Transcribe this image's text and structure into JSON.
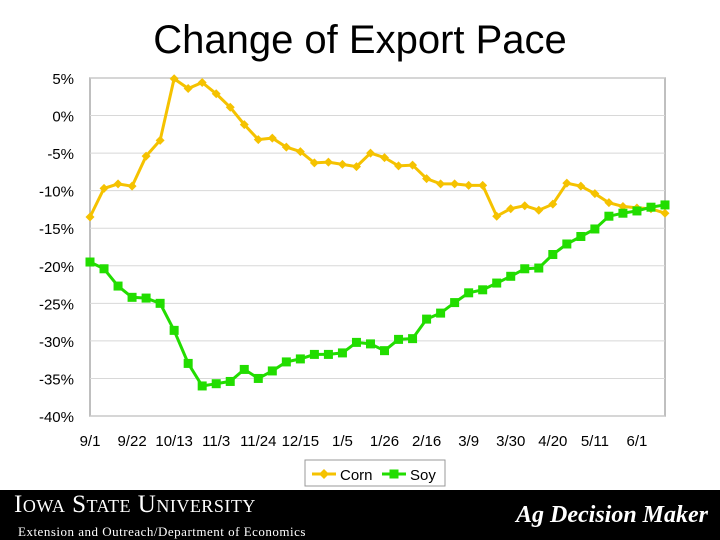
{
  "page": {
    "title": "Change of Export Pace",
    "footer": {
      "university": "Iowa State University",
      "department": "Extension and Outreach/Department of Economics",
      "brand": "Ag Decision Maker"
    }
  },
  "chart_data": {
    "type": "line",
    "title": "Change of Export Pace",
    "xlabel": "",
    "ylabel": "",
    "ylim": [
      -40,
      5
    ],
    "y_ticks": [
      5,
      0,
      -5,
      -10,
      -15,
      -20,
      -25,
      -30,
      -35,
      -40
    ],
    "y_tick_labels": [
      "5%",
      "0%",
      "-5%",
      "-10%",
      "-15%",
      "-20%",
      "-25%",
      "-30%",
      "-35%",
      "-40%"
    ],
    "x_tick_labels": [
      {
        "index": 0,
        "label": "9/1"
      },
      {
        "index": 3,
        "label": "9/22"
      },
      {
        "index": 6,
        "label": "10/13"
      },
      {
        "index": 9,
        "label": "11/3"
      },
      {
        "index": 12,
        "label": "11/24"
      },
      {
        "index": 15,
        "label": "12/15"
      },
      {
        "index": 18,
        "label": "1/5"
      },
      {
        "index": 21,
        "label": "1/26"
      },
      {
        "index": 24,
        "label": "2/16"
      },
      {
        "index": 27,
        "label": "3/9"
      },
      {
        "index": 30,
        "label": "3/30"
      },
      {
        "index": 33,
        "label": "4/20"
      },
      {
        "index": 36,
        "label": "5/11"
      },
      {
        "index": 39,
        "label": "6/1"
      }
    ],
    "grid": true,
    "legend_position": "bottom",
    "series": [
      {
        "name": "Corn",
        "color": "#f5c200",
        "marker": "diamond",
        "values": [
          -13.5,
          -9.7,
          -9.1,
          -9.4,
          -5.4,
          -3.3,
          4.9,
          3.6,
          4.4,
          2.9,
          1.1,
          -1.2,
          -3.2,
          -3.0,
          -4.2,
          -4.8,
          -6.3,
          -6.2,
          -6.5,
          -6.8,
          -5.0,
          -5.6,
          -6.7,
          -6.6,
          -8.4,
          -9.1,
          -9.1,
          -9.3,
          -9.3,
          -13.4,
          -12.4,
          -12.0,
          -12.6,
          -11.8,
          -9.0,
          -9.4,
          -10.4,
          -11.6,
          -12.1,
          -12.3,
          -12.4,
          -13.0
        ],
        "count": 42
      },
      {
        "name": "Soy",
        "color": "#22dd00",
        "marker": "square",
        "values": [
          -19.5,
          -20.4,
          -22.7,
          -24.2,
          -24.3,
          -25.0,
          -28.6,
          -33.0,
          -36.0,
          -35.7,
          -35.4,
          -33.8,
          -35.0,
          -34.0,
          -32.8,
          -32.4,
          -31.8,
          -31.8,
          -31.6,
          -30.2,
          -30.4,
          -31.3,
          -29.8,
          -29.7,
          -27.1,
          -26.3,
          -24.9,
          -23.6,
          -23.2,
          -22.3,
          -21.4,
          -20.4,
          -20.3,
          -18.5,
          -17.1,
          -16.1,
          -15.1,
          -13.4,
          -13.0,
          -12.7,
          -12.2,
          -11.9
        ]
      }
    ]
  }
}
